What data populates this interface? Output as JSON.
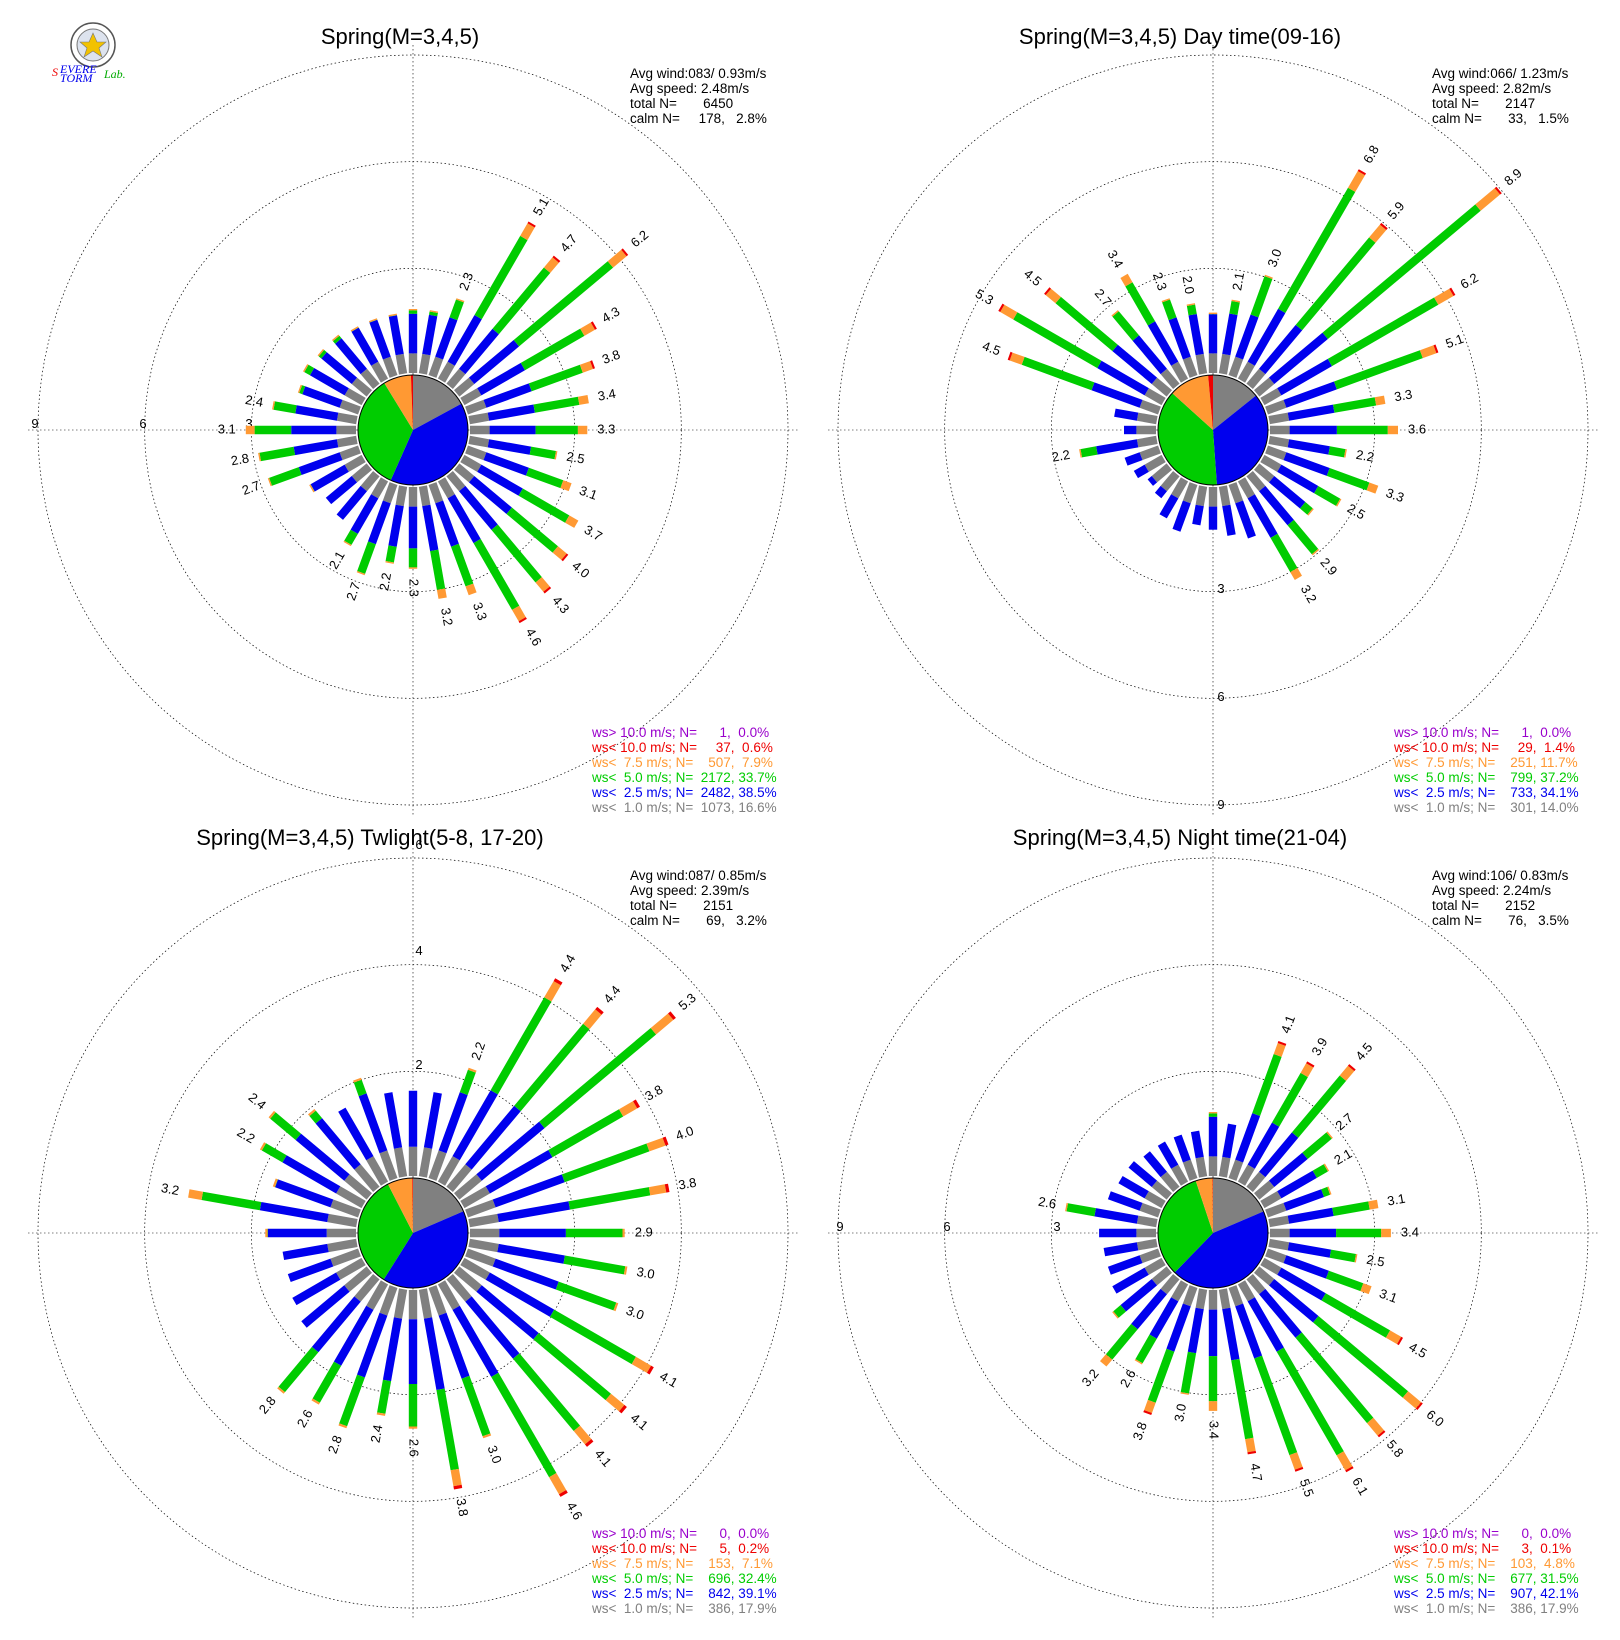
{
  "colors": {
    "gray": "#808080",
    "blue": "#0000ee",
    "green": "#00cc00",
    "orange": "#ff9933",
    "red": "#ee0000",
    "purple": "#9900cc"
  },
  "logo": {
    "name": "severe-storm-lab-logo",
    "text": "Severe Storm Lab."
  },
  "chart_data": [
    {
      "type": "wind-rose",
      "title": "Spring(M=3,4,5)",
      "ring_labels": [
        "3",
        "6",
        "9"
      ],
      "ring_values": [
        3,
        6,
        9
      ],
      "stats": [
        "Avg wind:083/ 0.93m/s",
        "Avg speed: 2.48m/s",
        "total N=       6450",
        "calm N=     178,   2.8%"
      ],
      "legend": [
        "ws> 10.0 m/s; N=      1,  0.0%",
        "ws< 10.0 m/s; N=     37,  0.6%",
        "ws<  7.5 m/s; N=    507,  7.9%",
        "ws<  5.0 m/s; N=  2172, 33.7%",
        "ws<  2.5 m/s; N=  2482, 38.5%",
        "ws<  1.0 m/s; N=  1073, 16.6%"
      ],
      "pie": [
        16.6,
        38.5,
        33.7,
        7.9,
        0.6,
        0.0
      ],
      "directions": [
        {
          "deg": 20,
          "total": 2.3,
          "label": "2.3"
        },
        {
          "deg": 30,
          "total": 5.1,
          "label": "5.1"
        },
        {
          "deg": 40,
          "total": 4.7,
          "label": "4.7"
        },
        {
          "deg": 50,
          "total": 6.2,
          "label": "6.2"
        },
        {
          "deg": 60,
          "total": 4.3,
          "label": "4.3"
        },
        {
          "deg": 70,
          "total": 3.8,
          "label": "3.8"
        },
        {
          "deg": 80,
          "total": 3.4,
          "label": "3.4"
        },
        {
          "deg": 90,
          "total": 3.3,
          "label": "3.3"
        },
        {
          "deg": 100,
          "total": 2.5,
          "label": "2.5"
        },
        {
          "deg": 110,
          "total": 3.1,
          "label": "3.1"
        },
        {
          "deg": 120,
          "total": 3.7,
          "label": "3.7"
        },
        {
          "deg": 130,
          "total": 4.0,
          "label": "4.0"
        },
        {
          "deg": 140,
          "total": 4.3,
          "label": "4.3"
        },
        {
          "deg": 150,
          "total": 4.6,
          "label": "4.6"
        },
        {
          "deg": 160,
          "total": 3.3,
          "label": "3.3"
        },
        {
          "deg": 170,
          "total": 3.2,
          "label": "3.2"
        },
        {
          "deg": 180,
          "total": 2.3,
          "label": "2.3"
        },
        {
          "deg": 190,
          "total": 2.2,
          "label": "2.2"
        },
        {
          "deg": 200,
          "total": 2.7,
          "label": "2.7"
        },
        {
          "deg": 210,
          "total": 2.1,
          "label": "2.1"
        },
        {
          "deg": 250,
          "total": 2.7,
          "label": "2.7"
        },
        {
          "deg": 260,
          "total": 2.8,
          "label": "2.8"
        },
        {
          "deg": 270,
          "total": 3.1,
          "label": "3.1"
        },
        {
          "deg": 280,
          "total": 2.4,
          "label": "2.4"
        }
      ],
      "unlabeled_directions": [
        {
          "deg": 0,
          "total": 1.8
        },
        {
          "deg": 10,
          "total": 1.8
        },
        {
          "deg": 220,
          "total": 1.6
        },
        {
          "deg": 230,
          "total": 1.5
        },
        {
          "deg": 240,
          "total": 1.7
        },
        {
          "deg": 290,
          "total": 1.8
        },
        {
          "deg": 300,
          "total": 1.9
        },
        {
          "deg": 310,
          "total": 1.8
        },
        {
          "deg": 320,
          "total": 1.8
        },
        {
          "deg": 330,
          "total": 1.7
        },
        {
          "deg": 340,
          "total": 1.7
        },
        {
          "deg": 350,
          "total": 1.7
        }
      ]
    },
    {
      "type": "wind-rose",
      "title": "Spring(M=3,4,5) Day time(09-16)",
      "ring_labels": [
        "3",
        "6",
        "9"
      ],
      "ring_values": [
        3,
        6,
        9
      ],
      "stats": [
        "Avg wind:066/ 1.23m/s",
        "Avg speed: 2.82m/s",
        "total N=       2147",
        "calm N=       33,   1.5%"
      ],
      "legend": [
        "ws> 10.0 m/s; N=      1,  0.0%",
        "ws< 10.0 m/s; N=     29,  1.4%",
        "ws<  7.5 m/s; N=    251, 11.7%",
        "ws<  5.0 m/s; N=    799, 37.2%",
        "ws<  2.5 m/s; N=    733, 34.1%",
        "ws<  1.0 m/s; N=    301, 14.0%"
      ],
      "pie": [
        14.0,
        34.1,
        37.2,
        11.7,
        1.4,
        0.0
      ],
      "directions": [
        {
          "deg": 10,
          "total": 2.1,
          "label": "2.1"
        },
        {
          "deg": 20,
          "total": 3.0,
          "label": "3.0"
        },
        {
          "deg": 30,
          "total": 6.8,
          "label": "6.8"
        },
        {
          "deg": 40,
          "total": 5.9,
          "label": "5.9"
        },
        {
          "deg": 50,
          "total": 8.9,
          "label": "8.9"
        },
        {
          "deg": 60,
          "total": 6.2,
          "label": "6.2"
        },
        {
          "deg": 70,
          "total": 5.1,
          "label": "5.1"
        },
        {
          "deg": 80,
          "total": 3.3,
          "label": "3.3"
        },
        {
          "deg": 90,
          "total": 3.6,
          "label": "3.6"
        },
        {
          "deg": 100,
          "total": 2.2,
          "label": "2.2"
        },
        {
          "deg": 110,
          "total": 3.3,
          "label": "3.3"
        },
        {
          "deg": 120,
          "total": 2.5,
          "label": "2.5"
        },
        {
          "deg": 140,
          "total": 2.9,
          "label": "2.9"
        },
        {
          "deg": 150,
          "total": 3.2,
          "label": "3.2"
        },
        {
          "deg": 260,
          "total": 2.2,
          "label": "2.2"
        },
        {
          "deg": 290,
          "total": 4.5,
          "label": "4.5"
        },
        {
          "deg": 300,
          "total": 5.3,
          "label": "5.3"
        },
        {
          "deg": 310,
          "total": 4.5,
          "label": "4.5"
        },
        {
          "deg": 320,
          "total": 2.7,
          "label": "2.7"
        },
        {
          "deg": 330,
          "total": 3.4,
          "label": "3.4"
        },
        {
          "deg": 340,
          "total": 2.3,
          "label": "2.3"
        },
        {
          "deg": 350,
          "total": 2.0,
          "label": "2.0"
        }
      ],
      "unlabeled_directions": [
        {
          "deg": 0,
          "total": 1.7
        },
        {
          "deg": 130,
          "total": 2.0
        },
        {
          "deg": 160,
          "total": 1.6
        },
        {
          "deg": 170,
          "total": 1.4
        },
        {
          "deg": 180,
          "total": 1.2
        },
        {
          "deg": 190,
          "total": 1.1
        },
        {
          "deg": 200,
          "total": 1.4
        },
        {
          "deg": 210,
          "total": 1.2
        },
        {
          "deg": 220,
          "total": 0.8
        },
        {
          "deg": 230,
          "total": 0.7
        },
        {
          "deg": 240,
          "total": 0.9
        },
        {
          "deg": 250,
          "total": 1.0
        },
        {
          "deg": 270,
          "total": 0.9
        },
        {
          "deg": 280,
          "total": 1.2
        }
      ]
    },
    {
      "type": "wind-rose",
      "title": "Spring(M=3,4,5) Twlight(5-8, 17-20)",
      "ring_labels": [
        "2",
        "4",
        "6"
      ],
      "ring_values": [
        2,
        4,
        6
      ],
      "stats": [
        "Avg wind:087/ 0.85m/s",
        "Avg speed: 2.39m/s",
        "total N=       2151",
        "calm N=       69,   3.2%"
      ],
      "legend": [
        "ws> 10.0 m/s; N=      0,  0.0%",
        "ws< 10.0 m/s; N=      5,  0.2%",
        "ws<  7.5 m/s; N=    153,  7.1%",
        "ws<  5.0 m/s; N=    696, 32.4%",
        "ws<  2.5 m/s; N=    842, 39.1%",
        "ws<  1.0 m/s; N=    386, 17.9%"
      ],
      "pie": [
        17.9,
        39.1,
        32.4,
        7.1,
        0.2,
        0.0
      ],
      "directions": [
        {
          "deg": 20,
          "total": 2.2,
          "label": "2.2"
        },
        {
          "deg": 30,
          "total": 4.4,
          "label": "4.4"
        },
        {
          "deg": 40,
          "total": 4.4,
          "label": "4.4"
        },
        {
          "deg": 50,
          "total": 5.3,
          "label": "5.3"
        },
        {
          "deg": 60,
          "total": 3.8,
          "label": "3.8"
        },
        {
          "deg": 70,
          "total": 4.0,
          "label": "4.0"
        },
        {
          "deg": 80,
          "total": 3.8,
          "label": "3.8"
        },
        {
          "deg": 90,
          "total": 2.9,
          "label": "2.9"
        },
        {
          "deg": 100,
          "total": 3.0,
          "label": "3.0"
        },
        {
          "deg": 110,
          "total": 3.0,
          "label": "3.0"
        },
        {
          "deg": 120,
          "total": 4.1,
          "label": "4.1"
        },
        {
          "deg": 130,
          "total": 4.1,
          "label": "4.1"
        },
        {
          "deg": 140,
          "total": 4.1,
          "label": "4.1"
        },
        {
          "deg": 150,
          "total": 4.6,
          "label": "4.6"
        },
        {
          "deg": 160,
          "total": 3.0,
          "label": "3.0"
        },
        {
          "deg": 170,
          "total": 3.8,
          "label": "3.8"
        },
        {
          "deg": 180,
          "total": 2.6,
          "label": "2.6"
        },
        {
          "deg": 190,
          "total": 2.4,
          "label": "2.4"
        },
        {
          "deg": 200,
          "total": 2.8,
          "label": "2.8"
        },
        {
          "deg": 210,
          "total": 2.6,
          "label": "2.6"
        },
        {
          "deg": 220,
          "total": 2.8,
          "label": "2.8"
        },
        {
          "deg": 280,
          "total": 3.2,
          "label": "3.2"
        },
        {
          "deg": 300,
          "total": 2.2,
          "label": "2.2"
        },
        {
          "deg": 310,
          "total": 2.4,
          "label": "2.4"
        }
      ],
      "unlabeled_directions": [
        {
          "deg": 0,
          "total": 1.6
        },
        {
          "deg": 10,
          "total": 1.6
        },
        {
          "deg": 230,
          "total": 1.6
        },
        {
          "deg": 240,
          "total": 1.5
        },
        {
          "deg": 250,
          "total": 1.4
        },
        {
          "deg": 260,
          "total": 1.4
        },
        {
          "deg": 270,
          "total": 1.7
        },
        {
          "deg": 290,
          "total": 1.7
        },
        {
          "deg": 320,
          "total": 1.9
        },
        {
          "deg": 330,
          "total": 1.6
        },
        {
          "deg": 340,
          "total": 2.0
        },
        {
          "deg": 350,
          "total": 1.6
        }
      ]
    },
    {
      "type": "wind-rose",
      "title": "Spring(M=3,4,5) Night time(21-04)",
      "ring_labels": [
        "3",
        "6",
        "9"
      ],
      "ring_values": [
        3,
        6,
        9
      ],
      "stats": [
        "Avg wind:106/ 0.83m/s",
        "Avg speed: 2.24m/s",
        "total N=       2152",
        "calm N=       76,   3.5%"
      ],
      "legend": [
        "ws> 10.0 m/s; N=      0,  0.0%",
        "ws< 10.0 m/s; N=      3,  0.1%",
        "ws<  7.5 m/s; N=    103,  4.8%",
        "ws<  5.0 m/s; N=    677, 31.5%",
        "ws<  2.5 m/s; N=    907, 42.1%",
        "ws<  1.0 m/s; N=    386, 17.9%"
      ],
      "pie": [
        17.9,
        42.1,
        31.5,
        4.8,
        0.1,
        0.0
      ],
      "directions": [
        {
          "deg": 20,
          "total": 4.1,
          "label": "4.1"
        },
        {
          "deg": 30,
          "total": 3.9,
          "label": "3.9"
        },
        {
          "deg": 40,
          "total": 4.5,
          "label": "4.5"
        },
        {
          "deg": 50,
          "total": 2.7,
          "label": "2.7"
        },
        {
          "deg": 60,
          "total": 2.1,
          "label": "2.1"
        },
        {
          "deg": 80,
          "total": 3.1,
          "label": "3.1"
        },
        {
          "deg": 90,
          "total": 3.4,
          "label": "3.4"
        },
        {
          "deg": 100,
          "total": 2.5,
          "label": "2.5"
        },
        {
          "deg": 110,
          "total": 3.1,
          "label": "3.1"
        },
        {
          "deg": 120,
          "total": 4.5,
          "label": "4.5"
        },
        {
          "deg": 130,
          "total": 6.0,
          "label": "6.0"
        },
        {
          "deg": 140,
          "total": 5.8,
          "label": "5.8"
        },
        {
          "deg": 150,
          "total": 6.1,
          "label": "6.1"
        },
        {
          "deg": 160,
          "total": 5.5,
          "label": "5.5"
        },
        {
          "deg": 170,
          "total": 4.7,
          "label": "4.7"
        },
        {
          "deg": 180,
          "total": 3.4,
          "label": "3.4"
        },
        {
          "deg": 190,
          "total": 3.0,
          "label": "3.0"
        },
        {
          "deg": 200,
          "total": 3.8,
          "label": "3.8"
        },
        {
          "deg": 210,
          "total": 2.6,
          "label": "2.6"
        },
        {
          "deg": 220,
          "total": 3.2,
          "label": "3.2"
        },
        {
          "deg": 280,
          "total": 2.6,
          "label": "2.6"
        }
      ],
      "unlabeled_directions": [
        {
          "deg": 0,
          "total": 1.8
        },
        {
          "deg": 10,
          "total": 1.5
        },
        {
          "deg": 70,
          "total": 1.9
        },
        {
          "deg": 230,
          "total": 2.0
        },
        {
          "deg": 240,
          "total": 1.6
        },
        {
          "deg": 250,
          "total": 1.5
        },
        {
          "deg": 260,
          "total": 1.5
        },
        {
          "deg": 270,
          "total": 1.6
        },
        {
          "deg": 290,
          "total": 1.5
        },
        {
          "deg": 300,
          "total": 1.4
        },
        {
          "deg": 310,
          "total": 1.4
        },
        {
          "deg": 320,
          "total": 1.3
        },
        {
          "deg": 330,
          "total": 1.3
        },
        {
          "deg": 340,
          "total": 1.3
        },
        {
          "deg": 350,
          "total": 1.3
        }
      ]
    }
  ]
}
